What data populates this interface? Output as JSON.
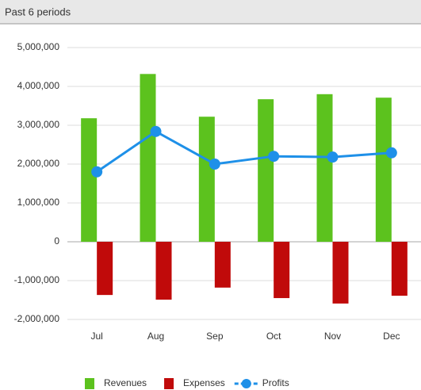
{
  "chart_data": {
    "type": "bar_line",
    "title": "Past 6 periods",
    "categories": [
      "Jul",
      "Aug",
      "Sep",
      "Oct",
      "Nov",
      "Dec"
    ],
    "series": [
      {
        "name": "Revenues",
        "type": "bar",
        "color": "#5cc21e",
        "values": [
          3180000,
          4320000,
          3220000,
          3670000,
          3800000,
          3710000
        ]
      },
      {
        "name": "Expenses",
        "type": "bar",
        "color": "#c00a0a",
        "values": [
          -1370000,
          -1490000,
          -1180000,
          -1450000,
          -1590000,
          -1390000
        ]
      },
      {
        "name": "Profits",
        "type": "line",
        "color": "#1e90e8",
        "values": [
          1800000,
          2840000,
          2000000,
          2200000,
          2180000,
          2290000
        ]
      }
    ],
    "ylim": [
      -2000000,
      5000000
    ],
    "yticks": [
      {
        "value": -2000000,
        "label": "-2,000,000"
      },
      {
        "value": -1000000,
        "label": "-1,000,000"
      },
      0,
      {
        "value": 1000000,
        "label": "1,000,000"
      },
      {
        "value": 2000000,
        "label": "2,000,000"
      },
      {
        "value": 3000000,
        "label": "3,000,000"
      },
      {
        "value": 4000000,
        "label": "4,000,000"
      },
      {
        "value": 5000000,
        "label": "5,000,000"
      }
    ],
    "grid": true,
    "legend": "bottom"
  }
}
